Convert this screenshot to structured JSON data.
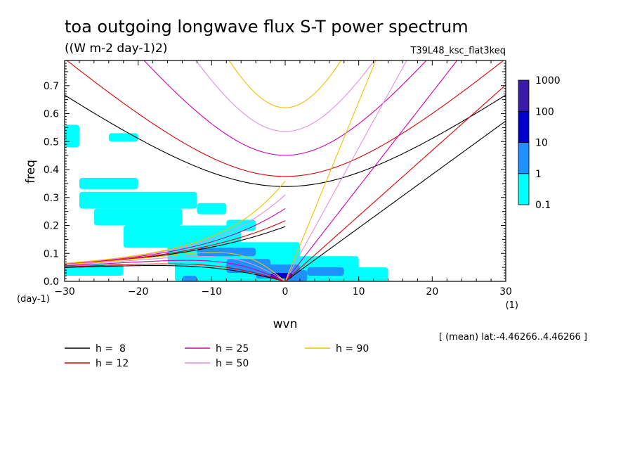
{
  "chart_data": {
    "type": "heatmap",
    "title": "toa outgoing longwave flux S-T power spectrum",
    "subtitle": "((W m-2 day-1)2)",
    "run_name": "T39L48_ksc_flat3keq",
    "xlabel": "wvn",
    "ylabel": "freq",
    "x_unit": "(1)",
    "y_unit": "(day-1)",
    "xlim": [
      -30,
      30
    ],
    "ylim": [
      0,
      0.79
    ],
    "x_ticks": [
      "−30",
      "−20",
      "−10",
      "0",
      "10",
      "20",
      "30"
    ],
    "y_ticks": [
      "0.0",
      "0.1",
      "0.2",
      "0.3",
      "0.4",
      "0.5",
      "0.6",
      "0.7"
    ],
    "colorbar": {
      "levels": [
        "0.1",
        "1",
        "10",
        "100",
        "1000"
      ],
      "colors": [
        "#00ffff",
        "#1e90ff",
        "#0000cd",
        "#3a1aa8"
      ]
    },
    "footnote": "[ (mean) lat:-4.46266..4.46266 ]",
    "dispersion_curves": [
      {
        "h": 8,
        "label": "h =  8",
        "color": "#000000"
      },
      {
        "h": 12,
        "label": "h = 12",
        "color": "#e00000"
      },
      {
        "h": 25,
        "label": "h = 25",
        "color": "#d000b0"
      },
      {
        "h": 50,
        "label": "h = 50",
        "color": "#e090e0"
      },
      {
        "h": 90,
        "label": "h = 90",
        "color": "#f0c000"
      }
    ],
    "spectrum_regions": [
      {
        "k": [
          -30,
          -22
        ],
        "f": [
          0.02,
          0.06
        ],
        "level": 0
      },
      {
        "k": [
          -28,
          -20
        ],
        "f": [
          0.33,
          0.37
        ],
        "level": 0
      },
      {
        "k": [
          -28,
          -12
        ],
        "f": [
          0.26,
          0.32
        ],
        "level": 0
      },
      {
        "k": [
          -26,
          -14
        ],
        "f": [
          0.2,
          0.26
        ],
        "level": 0
      },
      {
        "k": [
          -22,
          -6
        ],
        "f": [
          0.12,
          0.2
        ],
        "level": 0
      },
      {
        "k": [
          -16,
          2
        ],
        "f": [
          0.06,
          0.14
        ],
        "level": 0
      },
      {
        "k": [
          -15,
          0
        ],
        "f": [
          0.0,
          0.07
        ],
        "level": 0
      },
      {
        "k": [
          -5,
          10
        ],
        "f": [
          0.0,
          0.09
        ],
        "level": 0
      },
      {
        "k": [
          2,
          14
        ],
        "f": [
          0.0,
          0.05
        ],
        "level": 0
      },
      {
        "k": [
          -30,
          -28
        ],
        "f": [
          0.48,
          0.56
        ],
        "level": 0
      },
      {
        "k": [
          -24,
          -20
        ],
        "f": [
          0.5,
          0.53
        ],
        "level": 0
      },
      {
        "k": [
          -12,
          -8
        ],
        "f": [
          0.24,
          0.28
        ],
        "level": 0
      },
      {
        "k": [
          -8,
          -4
        ],
        "f": [
          0.18,
          0.22
        ],
        "level": 0
      },
      {
        "k": [
          -12,
          -4
        ],
        "f": [
          0.09,
          0.12
        ],
        "level": 1
      },
      {
        "k": [
          -8,
          -2
        ],
        "f": [
          0.03,
          0.08
        ],
        "level": 1
      },
      {
        "k": [
          -4,
          2
        ],
        "f": [
          0.01,
          0.06
        ],
        "level": 1
      },
      {
        "k": [
          0,
          3
        ],
        "f": [
          0.0,
          0.04
        ],
        "level": 1
      },
      {
        "k": [
          3,
          8
        ],
        "f": [
          0.02,
          0.05
        ],
        "level": 1
      },
      {
        "k": [
          -14,
          -12
        ],
        "f": [
          0.0,
          0.02
        ],
        "level": 1
      },
      {
        "k": [
          -2,
          1
        ],
        "f": [
          0.01,
          0.03
        ],
        "level": 2
      }
    ]
  }
}
